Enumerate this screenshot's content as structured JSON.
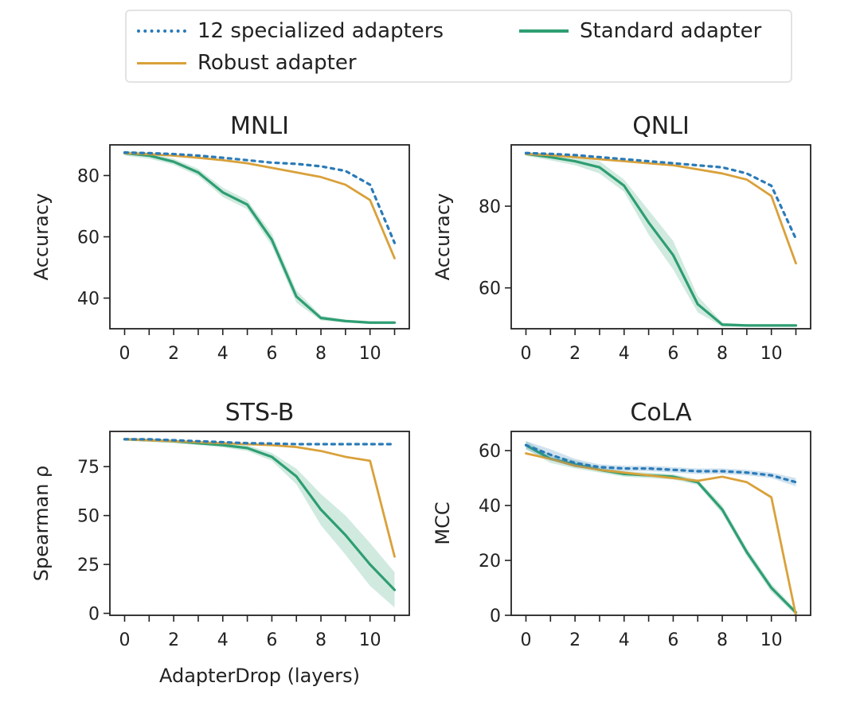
{
  "legend": {
    "items": [
      {
        "key": "specialized",
        "label": "12 specialized adapters",
        "color": "#2a7ab8",
        "style": "dotted"
      },
      {
        "key": "standard",
        "label": "Standard adapter",
        "color": "#2e9e72",
        "style": "solid"
      },
      {
        "key": "robust",
        "label": "Robust adapter",
        "color": "#d9a13a",
        "style": "solid"
      }
    ]
  },
  "chart_data": [
    {
      "type": "line",
      "title": "MNLI",
      "xlabel": "",
      "ylabel": "Accuracy",
      "xlim": [
        -0.6,
        11.6
      ],
      "ylim": [
        30,
        90
      ],
      "yticks": [
        40,
        60,
        80
      ],
      "xticks": [
        0,
        2,
        4,
        6,
        8,
        10
      ],
      "x": [
        0,
        1,
        2,
        3,
        4,
        5,
        6,
        7,
        8,
        9,
        10,
        11
      ],
      "series": [
        {
          "name": "12 specialized adapters",
          "values": [
            87.5,
            87.3,
            87.0,
            86.5,
            85.8,
            85.0,
            84.2,
            83.8,
            83.0,
            81.5,
            77.0,
            58.0
          ]
        },
        {
          "name": "Robust adapter",
          "values": [
            87.3,
            87.0,
            86.5,
            85.8,
            85.0,
            84.0,
            82.5,
            81.0,
            79.5,
            77.0,
            72.0,
            53.0
          ]
        },
        {
          "name": "Standard adapter",
          "values": [
            87.3,
            86.5,
            84.5,
            81.0,
            74.5,
            70.5,
            59.0,
            40.5,
            33.5,
            32.5,
            32.0,
            32.0
          ],
          "band": [
            0.8,
            1.0,
            1.0,
            1.2,
            1.5,
            1.5,
            2.0,
            2.0,
            0.8,
            0.5,
            0.5,
            0.5
          ]
        }
      ]
    },
    {
      "type": "line",
      "title": "QNLI",
      "xlabel": "",
      "ylabel": "Accuracy",
      "xlim": [
        -0.6,
        11.6
      ],
      "ylim": [
        50,
        95
      ],
      "yticks": [
        60,
        80
      ],
      "xticks": [
        0,
        2,
        4,
        6,
        8,
        10
      ],
      "x": [
        0,
        1,
        2,
        3,
        4,
        5,
        6,
        7,
        8,
        9,
        10,
        11
      ],
      "series": [
        {
          "name": "12 specialized adapters",
          "values": [
            93.0,
            92.8,
            92.5,
            92.0,
            91.5,
            91.0,
            90.5,
            90.0,
            89.5,
            88.0,
            85.0,
            72.0
          ]
        },
        {
          "name": "Robust adapter",
          "values": [
            92.8,
            92.5,
            92.0,
            91.5,
            91.0,
            90.5,
            90.0,
            89.0,
            88.0,
            86.5,
            82.5,
            66.0
          ]
        },
        {
          "name": "Standard adapter",
          "values": [
            92.8,
            92.0,
            91.0,
            89.5,
            85.0,
            76.0,
            68.0,
            56.0,
            51.0,
            50.8,
            50.8,
            50.8
          ],
          "band": [
            0.5,
            0.8,
            1.0,
            1.5,
            1.5,
            3.0,
            3.5,
            2.0,
            0.5,
            0.3,
            0.3,
            0.3
          ]
        }
      ]
    },
    {
      "type": "line",
      "title": "STS-B",
      "xlabel": "AdapterDrop (layers)",
      "ylabel": "Spearman ρ",
      "xlim": [
        -0.6,
        11.6
      ],
      "ylim": [
        -1,
        93
      ],
      "yticks": [
        0,
        25,
        50,
        75
      ],
      "xticks": [
        0,
        2,
        4,
        6,
        8,
        10
      ],
      "x": [
        0,
        1,
        2,
        3,
        4,
        5,
        6,
        7,
        8,
        9,
        10,
        11
      ],
      "series": [
        {
          "name": "12 specialized adapters",
          "values": [
            89.0,
            89.0,
            88.5,
            88.0,
            87.5,
            87.0,
            86.8,
            86.5,
            86.5,
            86.5,
            86.5,
            86.5
          ]
        },
        {
          "name": "Robust adapter",
          "values": [
            89.0,
            88.5,
            88.0,
            87.5,
            87.0,
            86.5,
            86.0,
            85.0,
            83.0,
            80.0,
            78.0,
            29.0
          ]
        },
        {
          "name": "Standard adapter",
          "values": [
            89.0,
            88.5,
            88.0,
            87.0,
            86.0,
            84.5,
            80.0,
            70.0,
            53.0,
            40.0,
            25.0,
            12.0
          ],
          "band": [
            0.8,
            0.8,
            1.0,
            1.0,
            1.2,
            1.5,
            2.0,
            4.0,
            8.0,
            10.0,
            11.0,
            9.0
          ]
        }
      ]
    },
    {
      "type": "line",
      "title": "CoLA",
      "xlabel": "",
      "ylabel": "MCC",
      "xlim": [
        -0.6,
        11.6
      ],
      "ylim": [
        0,
        67
      ],
      "yticks": [
        0,
        20,
        40,
        60
      ],
      "xticks": [
        0,
        2,
        4,
        6,
        8,
        10
      ],
      "x": [
        0,
        1,
        2,
        3,
        4,
        5,
        6,
        7,
        8,
        9,
        10,
        11
      ],
      "series": [
        {
          "name": "12 specialized adapters",
          "values": [
            62.0,
            58.5,
            55.5,
            54.0,
            53.5,
            53.5,
            53.0,
            52.5,
            52.5,
            52.0,
            51.0,
            48.5
          ],
          "band": [
            1.5,
            2.0,
            1.5,
            1.0,
            1.0,
            1.0,
            1.0,
            1.0,
            1.0,
            1.0,
            1.0,
            1.5
          ]
        },
        {
          "name": "Robust adapter",
          "values": [
            59.0,
            57.0,
            54.5,
            53.0,
            52.0,
            51.0,
            50.0,
            49.0,
            50.5,
            48.5,
            43.0,
            0.0
          ]
        },
        {
          "name": "Standard adapter",
          "values": [
            62.0,
            57.0,
            55.0,
            53.0,
            51.5,
            51.0,
            50.5,
            48.5,
            38.5,
            23.0,
            10.0,
            1.0
          ],
          "band": [
            1.5,
            1.5,
            1.5,
            1.0,
            1.0,
            1.0,
            1.0,
            1.0,
            1.5,
            1.5,
            1.5,
            1.0
          ]
        }
      ]
    }
  ]
}
